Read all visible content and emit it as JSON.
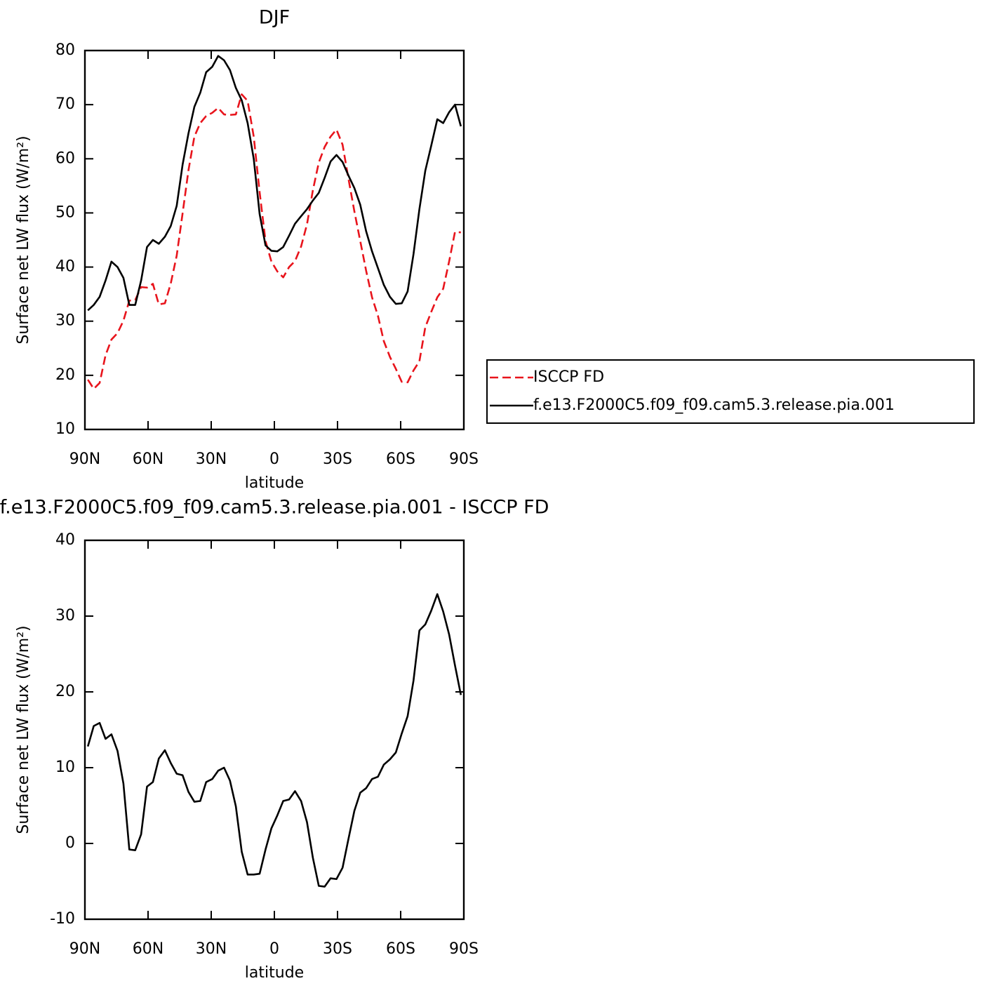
{
  "chart_data": [
    {
      "type": "line",
      "title": "DJF",
      "xlabel": "latitude",
      "ylabel": "Surface net LW flux (W/m²)",
      "x": [
        88.6,
        85.8,
        83.0,
        80.2,
        77.4,
        74.5,
        71.7,
        68.9,
        66.1,
        63.3,
        60.5,
        57.7,
        54.9,
        52.0,
        49.2,
        46.4,
        43.6,
        40.8,
        38.0,
        35.2,
        32.4,
        29.5,
        26.7,
        23.9,
        21.1,
        18.3,
        15.5,
        12.7,
        9.8,
        7.0,
        4.2,
        1.4,
        -1.4,
        -4.2,
        -7.0,
        -9.8,
        -12.7,
        -15.5,
        -18.3,
        -21.1,
        -23.9,
        -26.7,
        -29.5,
        -32.4,
        -35.2,
        -38.0,
        -40.8,
        -43.6,
        -46.4,
        -49.2,
        -52.0,
        -54.9,
        -57.7,
        -60.5,
        -63.3,
        -66.1,
        -68.9,
        -71.7,
        -74.5,
        -77.4,
        -80.2,
        -83.0,
        -85.8,
        -88.6
      ],
      "series": [
        {
          "name": "ISCCP FD",
          "color": "#e8141c",
          "dash": true,
          "values": [
            19.2,
            17.5,
            18.6,
            23.7,
            26.6,
            27.8,
            30.1,
            33.8,
            33.9,
            36.3,
            36.2,
            36.9,
            33.1,
            33.3,
            37,
            42.1,
            49.9,
            57.9,
            64.1,
            66.6,
            67.9,
            68.5,
            69.4,
            68.2,
            68.1,
            68.2,
            71.9,
            70.7,
            64.1,
            53.8,
            44.8,
            41,
            39.2,
            38.1,
            40,
            41.1,
            43.8,
            47.9,
            54.2,
            59.3,
            62.2,
            64.1,
            65.4,
            62.6,
            56.3,
            50.3,
            44.8,
            39.3,
            34.4,
            31,
            26.3,
            23.4,
            21.2,
            18.8,
            18.7,
            20.9,
            22.6,
            28.9,
            31.7,
            34.4,
            36,
            41,
            46.5,
            46.4
          ]
        },
        {
          "name": "f.e13.F2000C5.f09_f09.cam5.3.release.pia.001",
          "color": "#000000",
          "dash": false,
          "values": [
            32,
            33,
            34.5,
            37.5,
            41,
            40,
            38,
            33,
            33,
            37.5,
            43.7,
            45,
            44.3,
            45.6,
            47.6,
            51.3,
            58.9,
            64.7,
            69.6,
            72.2,
            76,
            77,
            79,
            78.2,
            76.4,
            73.1,
            70.8,
            66.6,
            60,
            49.8,
            44,
            43,
            42.9,
            43.7,
            45.8,
            48,
            49.4,
            50.7,
            52.3,
            53.7,
            56.5,
            59.5,
            60.7,
            59.4,
            56.9,
            54.6,
            51.5,
            46.6,
            42.9,
            39.8,
            36.7,
            34.5,
            33.2,
            33.3,
            35.5,
            42.4,
            50.7,
            57.8,
            62.4,
            67.3,
            66.6,
            68.6,
            70,
            66
          ]
        }
      ],
      "xlim": [
        90,
        -90
      ],
      "xticks": [
        {
          "value": 90,
          "label": "90N"
        },
        {
          "value": 60,
          "label": "60N"
        },
        {
          "value": 30,
          "label": "30N"
        },
        0,
        {
          "value": -30,
          "label": "30S"
        },
        {
          "value": -60,
          "label": "60S"
        },
        {
          "value": -90,
          "label": "90S"
        }
      ],
      "ylim": [
        10,
        80
      ],
      "yticks": [
        10,
        20,
        30,
        40,
        50,
        60,
        70,
        80
      ],
      "legend": "right"
    },
    {
      "type": "line",
      "title": "f.e13.F2000C5.f09_f09.cam5.3.release.pia.001 - ISCCP FD",
      "xlabel": "latitude",
      "ylabel": "Surface net LW flux (W/m²)",
      "x": [
        88.6,
        85.8,
        83.0,
        80.2,
        77.4,
        74.5,
        71.7,
        68.9,
        66.1,
        63.3,
        60.5,
        57.7,
        54.9,
        52.0,
        49.2,
        46.4,
        43.6,
        40.8,
        38.0,
        35.2,
        32.4,
        29.5,
        26.7,
        23.9,
        21.1,
        18.3,
        15.5,
        12.7,
        9.8,
        7.0,
        4.2,
        1.4,
        -1.4,
        -4.2,
        -7.0,
        -9.8,
        -12.7,
        -15.5,
        -18.3,
        -21.1,
        -23.9,
        -26.7,
        -29.5,
        -32.4,
        -35.2,
        -38.0,
        -40.8,
        -43.6,
        -46.4,
        -49.2,
        -52.0,
        -54.9,
        -57.7,
        -60.5,
        -63.3,
        -66.1,
        -68.9,
        -71.7,
        -74.5,
        -77.4,
        -80.2,
        -83.0,
        -85.8,
        -88.6
      ],
      "color": "#000000",
      "values": [
        12.8,
        15.5,
        15.9,
        13.8,
        14.4,
        12.2,
        7.9,
        -0.8,
        -0.9,
        1.2,
        7.5,
        8.1,
        11.2,
        12.3,
        10.6,
        9.2,
        9,
        6.8,
        5.5,
        5.6,
        8.1,
        8.5,
        9.6,
        10,
        8.3,
        4.9,
        -1.1,
        -4.1,
        -4.1,
        -4,
        -0.8,
        2,
        3.7,
        5.6,
        5.8,
        6.9,
        5.6,
        2.8,
        -1.9,
        -5.6,
        -5.7,
        -4.6,
        -4.7,
        -3.2,
        0.6,
        4.3,
        6.7,
        7.3,
        8.5,
        8.8,
        10.4,
        11.1,
        12,
        14.5,
        16.8,
        21.5,
        28.1,
        28.9,
        30.7,
        32.9,
        30.6,
        27.6,
        23.5,
        19.6
      ],
      "xlim": [
        90,
        -90
      ],
      "xticks": [
        {
          "value": 90,
          "label": "90N"
        },
        {
          "value": 60,
          "label": "60N"
        },
        {
          "value": 30,
          "label": "30N"
        },
        0,
        {
          "value": -30,
          "label": "30S"
        },
        {
          "value": -60,
          "label": "60S"
        },
        {
          "value": -90,
          "label": "90S"
        }
      ],
      "ylim": [
        -10,
        40
      ],
      "yticks": [
        -10,
        0,
        10,
        20,
        30,
        40
      ]
    }
  ]
}
